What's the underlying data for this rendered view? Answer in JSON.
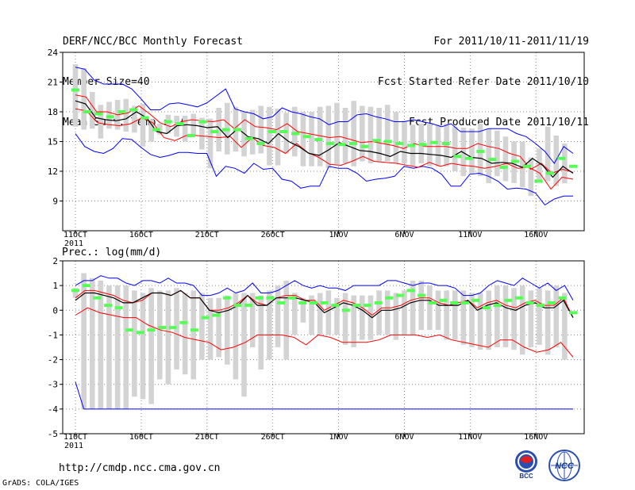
{
  "header": {
    "title": "DERF/NCC/BCC Monthly Forecast",
    "member_size": "Member Size=40",
    "variable": "Mean Surf. Temp.: °C",
    "forecast_period": "For 2011/10/11-2011/11/19",
    "start_date": "Fcst Started Refer Date 2011/10/10",
    "produced_date": "Fcst Produced Date 2011/10/11"
  },
  "footer": {
    "url": "http://cmdp.ncc.cma.gov.cn",
    "credit": "GrADS: COLA/IGES",
    "logo_bcc": "BCC",
    "logo_ncc": "NCC"
  },
  "colors": {
    "box": "#d3d3d3",
    "ensemble_mean": "#000000",
    "spread": "#ff0000",
    "envelope": "#0000ff",
    "observed": "#55ff55"
  },
  "chart_data": [
    {
      "type": "line",
      "title": "Mean Surf. Temp.: °C",
      "x_labels": [
        "11OCT",
        "16OCT",
        "21OCT",
        "26OCT",
        "1NOV",
        "6NOV",
        "11NOV",
        "16NOV"
      ],
      "x_sublabel": "2011",
      "ylim": [
        6,
        24
      ],
      "yticks": [
        9,
        12,
        15,
        18,
        21,
        24
      ],
      "grid": true,
      "series": [
        {
          "name": "box_top",
          "values": [
            22.8,
            22.4,
            20.0,
            18.7,
            19.0,
            19.2,
            19.3,
            18.6,
            18.8,
            17.2,
            16.8,
            17.7,
            17.6,
            17.6,
            17.8,
            17.4,
            17.3,
            18.4,
            18.9,
            18.5,
            18.0,
            18.2,
            18.6,
            18.5,
            18.3,
            17.9,
            18.5,
            18.0,
            18.0,
            18.5,
            18.6,
            18.9,
            18.4,
            19.1,
            18.6,
            18.5,
            18.4,
            18.7,
            18.0,
            17.1,
            16.7,
            16.8,
            16.8,
            16.7,
            16.8,
            16.5,
            16.4,
            16.3,
            16.8,
            16.3,
            16.1,
            15.5,
            15.0,
            15.0,
            13.4,
            14.3,
            16.5,
            15.6,
            14.8
          ]
        },
        {
          "name": "box_bottom",
          "values": [
            16.5,
            16.2,
            16.3,
            15.3,
            16.3,
            16.2,
            16.0,
            15.9,
            14.5,
            15.0,
            15.7,
            15.8,
            15.5,
            15.0,
            15.6,
            14.2,
            12.3,
            14.0,
            13.7,
            14.0,
            13.5,
            13.7,
            13.8,
            12.6,
            12.6,
            13.8,
            13.5,
            12.5,
            12.5,
            12.5,
            12.3,
            12.7,
            12.8,
            12.5,
            13.0,
            12.8,
            13.0,
            13.0,
            12.8,
            12.8,
            12.5,
            12.8,
            12.5,
            12.5,
            12.5,
            12.0,
            11.5,
            11.8,
            11.5,
            10.8,
            11.5,
            11.0,
            10.8,
            10.4,
            9.5,
            11.0,
            11.0,
            10.5,
            10.8
          ]
        },
        {
          "name": "ensemble_max",
          "values": [
            22.5,
            22.3,
            21.2,
            20.8,
            20.8,
            20.8,
            20.3,
            19.3,
            18.2,
            18.2,
            18.8,
            18.9,
            18.7,
            18.5,
            18.9,
            19.6,
            20.3,
            18.3,
            18.0,
            17.8,
            17.3,
            17.5,
            18.4,
            18.0,
            17.8,
            17.5,
            17.3,
            16.7,
            17.0,
            17.0,
            17.7,
            17.8,
            17.5,
            17.3,
            17.0,
            17.0,
            17.2,
            17.0,
            16.8,
            16.5,
            16.8,
            16.0,
            16.0,
            16.0,
            16.3,
            16.3,
            16.3,
            15.8,
            15.5,
            14.8,
            14.0,
            12.8,
            14.5,
            13.8
          ]
        },
        {
          "name": "ensemble_min",
          "values": [
            15.8,
            14.5,
            14.0,
            13.8,
            14.3,
            15.3,
            15.2,
            14.4,
            13.7,
            13.4,
            13.6,
            13.9,
            13.9,
            13.8,
            13.8,
            11.5,
            12.5,
            12.3,
            11.8,
            12.8,
            12.2,
            12.3,
            11.2,
            11.0,
            10.3,
            10.5,
            10.5,
            12.5,
            12.3,
            12.3,
            11.8,
            11.0,
            11.2,
            11.3,
            11.5,
            12.5,
            12.3,
            12.5,
            12.3,
            11.7,
            10.5,
            10.5,
            11.7,
            11.8,
            11.5,
            11.0,
            10.2,
            10.3,
            10.2,
            9.8,
            8.6,
            9.2,
            9.5,
            9.5
          ]
        },
        {
          "name": "spread_upper",
          "values": [
            19.7,
            19.5,
            18.0,
            18.0,
            17.7,
            17.9,
            18.6,
            17.8,
            16.9,
            16.5,
            17.0,
            17.2,
            17.1,
            17.0,
            17.2,
            16.3,
            17.2,
            16.5,
            16.4,
            16.2,
            16.8,
            16.0,
            15.8,
            15.6,
            15.4,
            15.5,
            15.2,
            14.9,
            15.0,
            14.8,
            14.6,
            14.3,
            14.8,
            14.5,
            14.5,
            14.5,
            14.3,
            14.3,
            14.8,
            14.5,
            14.3,
            13.8,
            13.5,
            12.2,
            12.8,
            11.8,
            12.2,
            11.9
          ]
        },
        {
          "name": "ensemble_mean",
          "values": [
            19.1,
            18.8,
            17.4,
            17.2,
            17.1,
            17.3,
            18.0,
            17.4,
            16.0,
            15.8,
            16.6,
            16.7,
            16.6,
            16.4,
            16.5,
            15.4,
            16.3,
            15.5,
            15.3,
            14.8,
            15.8,
            15.0,
            14.5,
            13.8,
            13.6,
            14.2,
            14.9,
            14.5,
            14.1,
            14.0,
            13.8,
            13.5,
            14.0,
            13.8,
            13.8,
            13.7,
            13.6,
            13.4,
            14.0,
            13.4,
            13.3,
            12.8,
            12.9,
            12.8,
            12.4,
            13.3,
            12.6,
            11.4,
            12.5,
            11.8
          ]
        },
        {
          "name": "spread_lower",
          "values": [
            18.3,
            18.1,
            16.9,
            16.7,
            16.6,
            16.8,
            17.4,
            16.9,
            15.4,
            15.1,
            15.6,
            15.6,
            15.5,
            15.4,
            15.5,
            14.4,
            15.4,
            14.6,
            14.4,
            13.8,
            14.8,
            13.9,
            13.4,
            12.7,
            12.6,
            13.0,
            13.5,
            13.0,
            12.9,
            12.8,
            12.6,
            12.4,
            12.9,
            12.5,
            12.8,
            12.6,
            12.5,
            12.3,
            12.5,
            12.8,
            12.3,
            12.4,
            11.8,
            10.2,
            11.4,
            11.2
          ]
        },
        {
          "name": "observed",
          "values": [
            20.2,
            18.0,
            17.8,
            17.5,
            18.0,
            18.2,
            17.4,
            16.2,
            17.0,
            16.8,
            15.6,
            17.0,
            16.0,
            16.2,
            16.2,
            15.3,
            14.8,
            16.0,
            16.0,
            15.8,
            15.5,
            15.2,
            14.8,
            14.7,
            14.8,
            14.5,
            15.1,
            15.0,
            14.8,
            14.6,
            14.7,
            14.9,
            14.8,
            13.5,
            13.3,
            14.0,
            13.2,
            12.4,
            13.0,
            12.5,
            11.0,
            11.8,
            13.3,
            12.5
          ]
        }
      ]
    },
    {
      "type": "line",
      "title": "Prec.: log(mm/d)",
      "x_labels": [
        "11OCT",
        "16OCT",
        "21OCT",
        "26OCT",
        "1NOV",
        "6NOV",
        "11NOV",
        "16NOV"
      ],
      "x_sublabel": "2011",
      "ylim": [
        -5,
        2
      ],
      "yticks": [
        -5,
        -4,
        -3,
        -2,
        -1,
        0,
        1,
        2
      ],
      "grid": true,
      "series": [
        {
          "name": "box_top",
          "values": [
            0.9,
            1.5,
            1.3,
            1.2,
            1.0,
            1.0,
            1.0,
            0.8,
            0.7,
            0.9,
            0.8,
            0.8,
            0.9,
            0.7,
            0.8,
            0.7,
            0.5,
            0.5,
            0.6,
            0.7,
            0.7,
            0.7,
            0.6,
            0.8,
            1.0,
            1.2,
            0.7,
            0.5,
            0.6,
            0.7,
            0.8,
            0.5,
            0.7,
            0.6,
            0.6,
            0.6,
            0.8,
            0.8,
            0.7,
            0.8,
            1.2,
            1.2,
            1.0,
            0.8,
            0.8,
            0.8,
            0.8,
            0.7,
            0.7,
            0.8,
            1.0,
            1.0,
            0.9,
            1.0,
            0.8,
            0.9,
            0.8,
            1.0,
            0.7
          ]
        },
        {
          "name": "box_bottom",
          "values": [
            0.5,
            -4.0,
            -4.0,
            -4.0,
            -4.0,
            -4.0,
            -4.0,
            -3.5,
            -3.6,
            -3.8,
            -2.8,
            -3.0,
            -2.4,
            -2.6,
            -2.8,
            -2.0,
            -2.0,
            -1.9,
            -2.2,
            -2.8,
            -3.5,
            -1.5,
            -2.4,
            -2.0,
            -1.5,
            -2.0,
            -1.0,
            -0.5,
            -1.0,
            -1.0,
            -1.0,
            -1.0,
            -1.4,
            -1.5,
            -1.2,
            -1.2,
            -1.0,
            -1.0,
            -1.2,
            -1.0,
            -1.0,
            -0.8,
            -0.8,
            -0.8,
            -1.2,
            -1.2,
            -1.4,
            -1.5,
            -1.6,
            -1.6,
            -1.5,
            -1.5,
            -1.6,
            -1.8,
            -1.5,
            -1.4,
            -1.8,
            -1.5,
            -2.0
          ]
        },
        {
          "name": "ensemble_max",
          "values": [
            1.0,
            1.2,
            1.2,
            1.4,
            1.3,
            1.3,
            1.1,
            1.0,
            1.2,
            1.2,
            1.1,
            1.3,
            1.1,
            1.1,
            1.0,
            0.6,
            0.6,
            0.7,
            0.9,
            0.7,
            0.8,
            1.1,
            0.7,
            0.7,
            0.8,
            1.0,
            1.2,
            1.0,
            0.9,
            1.0,
            0.9,
            0.9,
            0.8,
            1.0,
            1.0,
            1.0,
            1.0,
            1.2,
            1.2,
            1.1,
            1.0,
            1.1,
            1.1,
            1.0,
            1.0,
            0.9,
            0.6,
            0.6,
            0.7,
            1.0,
            1.2,
            1.1,
            1.0,
            1.3,
            1.1,
            0.9,
            1.1,
            0.8,
            1.0,
            0.4
          ]
        },
        {
          "name": "ensemble_min",
          "values": [
            -2.9,
            -4.0,
            -4.0,
            -4.0,
            -4.0,
            -4.0,
            -4.0,
            -4.0,
            -4.0,
            -4.0,
            -4.0,
            -4.0,
            -4.0,
            -4.0,
            -4.0,
            -4.0,
            -4.0,
            -4.0,
            -4.0,
            -4.0,
            -4.0,
            -4.0,
            -4.0,
            -4.0,
            -4.0,
            -4.0,
            -4.0,
            -4.0,
            -4.0,
            -4.0,
            -4.0,
            -4.0,
            -4.0,
            -4.0,
            -4.0,
            -4.0,
            -4.0,
            -4.0,
            -4.0,
            -4.0,
            -4.0,
            -4.0,
            -4.0,
            -4.0,
            -4.0,
            -4.0,
            -4.0,
            -4.0,
            -4.0,
            -4.0,
            -4.0,
            -4.0,
            -4.0,
            -4.0,
            -4.0,
            -4.0,
            -4.0,
            -4.0,
            -4.0,
            -4.0
          ]
        },
        {
          "name": "spread_upper",
          "values": [
            0.5,
            0.8,
            0.8,
            0.7,
            0.6,
            0.4,
            0.3,
            0.4,
            0.7,
            0.7,
            0.6,
            0.8,
            0.5,
            0.5,
            0.0,
            0.0,
            0.1,
            0.3,
            0.6,
            0.3,
            0.2,
            0.5,
            0.6,
            0.6,
            0.4,
            0.4,
            0.0,
            0.2,
            0.4,
            0.3,
            0.1,
            -0.2,
            0.1,
            0.1,
            0.2,
            0.4,
            0.5,
            0.5,
            0.3,
            0.2,
            0.3,
            0.4,
            0.1,
            0.3,
            0.4,
            0.2,
            0.1,
            0.3,
            0.4,
            0.2,
            0.2,
            0.5,
            -0.3
          ]
        },
        {
          "name": "ensemble_mean",
          "values": [
            0.4,
            0.7,
            0.7,
            0.6,
            0.5,
            0.3,
            0.3,
            0.5,
            0.7,
            0.7,
            0.6,
            0.8,
            0.5,
            0.5,
            0.0,
            -0.1,
            0.0,
            0.2,
            0.6,
            0.2,
            0.2,
            0.5,
            0.5,
            0.5,
            0.4,
            0.3,
            -0.1,
            0.1,
            0.3,
            0.2,
            0.0,
            -0.3,
            0.0,
            0.0,
            0.1,
            0.3,
            0.4,
            0.4,
            0.2,
            0.2,
            0.2,
            0.4,
            0.0,
            0.2,
            0.3,
            0.1,
            0.0,
            0.2,
            0.3,
            0.1,
            0.1,
            0.4,
            -0.3
          ]
        },
        {
          "name": "spread_lower",
          "values": [
            -0.2,
            0.1,
            -0.1,
            -0.2,
            -0.3,
            -0.3,
            -0.6,
            -0.8,
            -0.9,
            -1.1,
            -1.2,
            -1.3,
            -1.6,
            -1.5,
            -1.3,
            -1.0,
            -1.0,
            -1.0,
            -1.1,
            -1.4,
            -1.0,
            -1.1,
            -1.3,
            -1.3,
            -1.3,
            -1.2,
            -1.0,
            -1.0,
            -1.0,
            -1.1,
            -1.0,
            -1.2,
            -1.3,
            -1.4,
            -1.5,
            -1.2,
            -1.2,
            -1.5,
            -1.7,
            -1.6,
            -1.3,
            -1.9
          ]
        },
        {
          "name": "observed",
          "values": [
            0.8,
            1.0,
            0.5,
            0.2,
            0.1,
            -0.8,
            -0.9,
            -0.8,
            -0.7,
            -0.7,
            -0.5,
            -0.8,
            -0.3,
            -0.2,
            0.5,
            0.2,
            0.2,
            0.5,
            0.5,
            0.3,
            0.5,
            0.3,
            0.3,
            0.3,
            0.2,
            0.0,
            0.2,
            0.2,
            0.3,
            0.5,
            0.6,
            0.8,
            0.6,
            0.3,
            0.4,
            0.3,
            0.3,
            0.4,
            0.1,
            0.2,
            0.4,
            0.5,
            0.3,
            0.2,
            0.3,
            0.5,
            -0.1
          ]
        }
      ]
    }
  ]
}
